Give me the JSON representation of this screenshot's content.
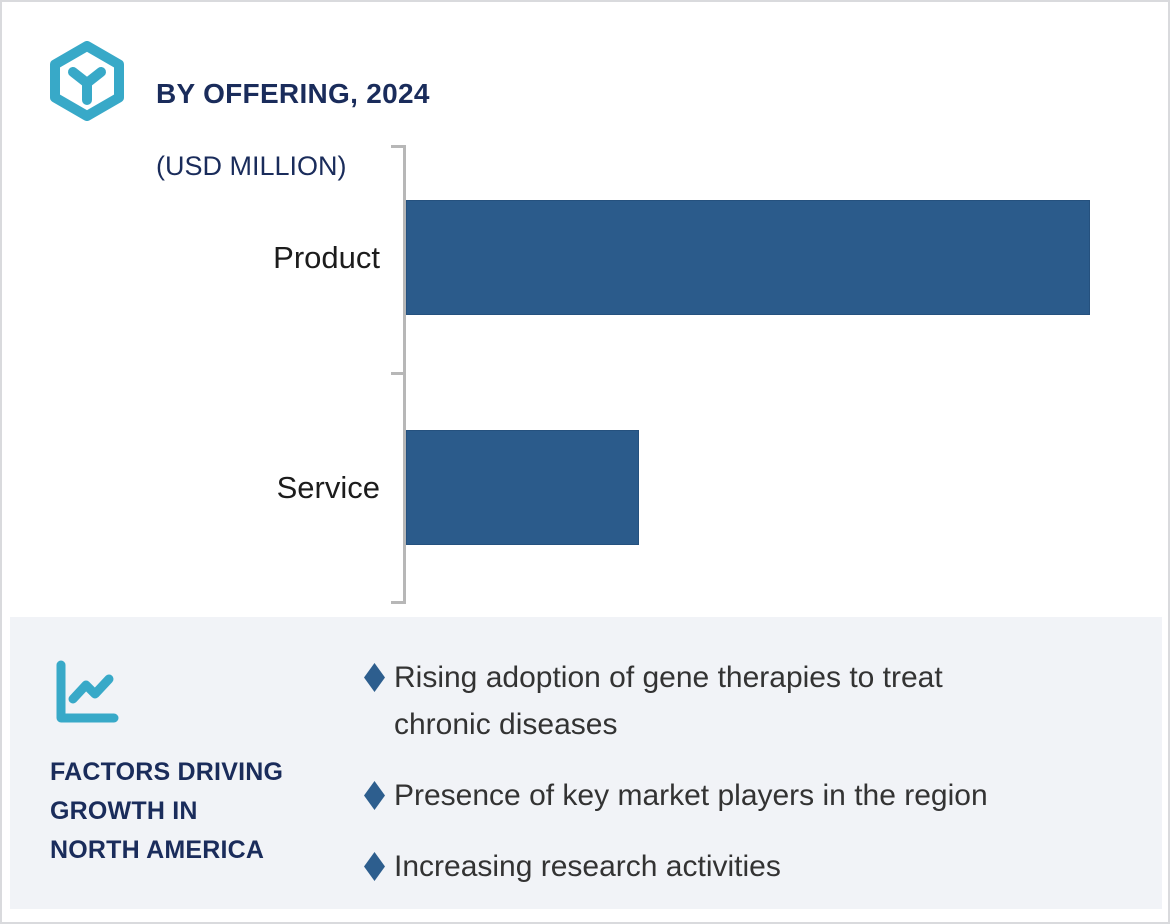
{
  "header": {
    "title": "BY OFFERING, 2024",
    "subtitle": "(USD MILLION)"
  },
  "chart_data": {
    "type": "bar",
    "orientation": "horizontal",
    "title": "BY OFFERING, 2024 (USD MILLION)",
    "categories": [
      "Product",
      "Service"
    ],
    "values": [
      100,
      34
    ],
    "values_note": "relative bar length, % of max; no numeric axis or data labels shown",
    "axis_numbers_shown": false,
    "grid": false,
    "legend": false,
    "bar_color": "#2b5b8b",
    "xlabel": "",
    "ylabel": ""
  },
  "factors": {
    "heading": "FACTORS DRIVING\nGROWTH IN\nNORTH AMERICA",
    "items": [
      {
        "text": "Rising adoption of gene therapies to treat\nchronic diseases"
      },
      {
        "text": "Presence of key market players in the region"
      },
      {
        "text": "Increasing research activities"
      }
    ]
  },
  "icons": {
    "logo": "hexagon-cube-icon",
    "factors": "trend-line-chart-icon",
    "bullet": "diamond-icon"
  },
  "colors": {
    "accent_teal": "#38a9c8",
    "navy": "#1a2c5b",
    "bar_blue": "#2b5b8b",
    "panel_bg": "#f1f3f7",
    "axis_gray": "#b7b7b7"
  }
}
